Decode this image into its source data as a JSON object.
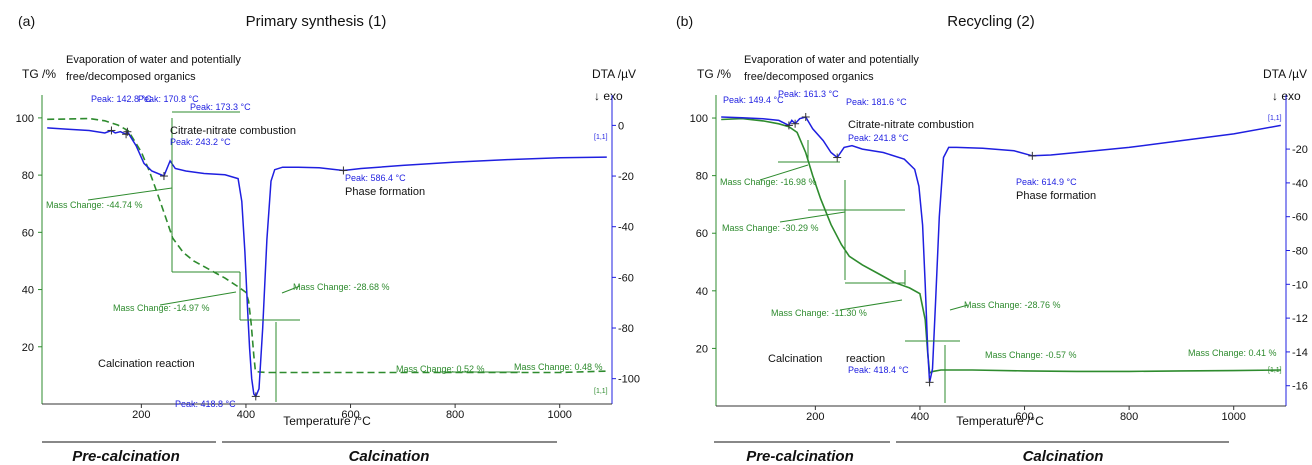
{
  "colors": {
    "tg": "#2e8b2e",
    "dta": "#1f1fe0",
    "text": "#111111",
    "axis_tg": "#2e8b2e",
    "axis_dta": "#1f1fe0"
  },
  "chart_data": [
    {
      "type": "line",
      "panel_label": "(a)",
      "title": "Primary synthesis (1)",
      "xlabel": "Temperature /°C",
      "ylabel_left": "TG /%",
      "ylabel_right": "DTA /µV",
      "exo_label": "↓ exo",
      "xlim": [
        10,
        1100
      ],
      "ylim_left": [
        0,
        108
      ],
      "ylim_right": [
        -110,
        12
      ],
      "xticks": [
        "200",
        "400",
        "600",
        "800",
        "1000"
      ],
      "yticks_left": [
        "20",
        "40",
        "60",
        "80",
        "100"
      ],
      "yticks_right": [
        "0",
        "-20",
        "-40",
        "-60",
        "-80",
        "-100"
      ],
      "series": [
        {
          "kind": "TG",
          "style": "dashed",
          "x": [
            20,
            60,
            100,
            130,
            155,
            175,
            200,
            215,
            230,
            245,
            260,
            280,
            300,
            330,
            360,
            385,
            400,
            405,
            410,
            415,
            418,
            425,
            440,
            480,
            600,
            800,
            1000,
            1090
          ],
          "y": [
            99.5,
            99.6,
            99.8,
            99,
            97.5,
            95.5,
            88,
            81.5,
            74,
            66,
            58,
            53,
            50,
            47,
            44,
            41,
            39,
            36,
            28,
            17,
            11.5,
            11.2,
            11,
            11,
            11,
            11,
            11,
            11.5
          ]
        },
        {
          "kind": "DTA",
          "style": "solid",
          "x": [
            20,
            60,
            100,
            130,
            142.8,
            150,
            160,
            170.8,
            173.3,
            190,
            205,
            220,
            243.2,
            255,
            265,
            285,
            320,
            360,
            385,
            392,
            398,
            403,
            407,
            411,
            415,
            418.8,
            425,
            432,
            440,
            448,
            455,
            470,
            500,
            540,
            586.4,
            620,
            700,
            800,
            900,
            1000,
            1090
          ],
          "y": [
            -1,
            -1.5,
            -2,
            -3,
            -2,
            -3,
            -2.5,
            -3.5,
            -2.5,
            -8,
            -15,
            -18,
            -20,
            -14,
            -17,
            -18,
            -19,
            -19.5,
            -21,
            -30,
            -50,
            -72,
            -88,
            -100,
            -106,
            -107,
            -104,
            -80,
            -45,
            -22,
            -17.5,
            -16.5,
            -16.5,
            -16.7,
            -17.8,
            -17,
            -15.8,
            -14.5,
            -13.5,
            -12.8,
            -12.5
          ]
        }
      ],
      "peaks_dta": [
        {
          "label": "Peak: 142.8 °C"
        },
        {
          "label": "Peak: 170.8 °C"
        },
        {
          "label": "Peak: 173.3 °C"
        },
        {
          "label": "Peak: 243.2 °C"
        },
        {
          "label": "Peak: 586.4 °C"
        },
        {
          "label": "Peak: 418.8 °C"
        }
      ],
      "mass_changes": [
        "Mass Change: -44.74 %",
        "Mass Change: -14.97 %",
        "Mass Change: -28.68 %",
        "Mass Change: 0.52 %",
        "Mass Change: 0.48 %"
      ],
      "annotations": [
        "Evaporation of water and potentially",
        "free/decomposed organics",
        "Citrate-nitrate combustion",
        "Phase formation",
        "Calcination reaction"
      ],
      "curve_tags": [
        "[1,1]",
        "[1,1]"
      ],
      "stages": [
        "Pre-calcination",
        "Calcination"
      ]
    },
    {
      "type": "line",
      "panel_label": "(b)",
      "title": "Recycling (2)",
      "xlabel": "Temperature /°C",
      "ylabel_left": "TG /%",
      "ylabel_right": "DTA /µV",
      "exo_label": "↓ exo",
      "xlim": [
        10,
        1100
      ],
      "ylim_left": [
        0,
        108
      ],
      "ylim_right": [
        -172,
        12
      ],
      "xticks": [
        "200",
        "400",
        "600",
        "800",
        "1000"
      ],
      "yticks_left": [
        "20",
        "40",
        "60",
        "80",
        "100"
      ],
      "yticks_right": [
        "-20",
        "-40",
        "-60",
        "-80",
        "-10",
        "-12",
        "-14",
        "-16"
      ],
      "series": [
        {
          "kind": "TG",
          "style": "solid",
          "x": [
            20,
            60,
            100,
            130,
            149.4,
            165,
            181.6,
            195,
            210,
            230,
            250,
            265,
            290,
            320,
            350,
            380,
            400,
            410,
            415,
            418.4,
            425,
            440,
            500,
            600,
            700,
            800,
            900,
            1000,
            1090
          ],
          "y": [
            99.5,
            99.8,
            99,
            98,
            97,
            95,
            88,
            80,
            72,
            63,
            56,
            52,
            49,
            46,
            43,
            41,
            39,
            30,
            18,
            11.5,
            12,
            12.5,
            12.5,
            12.2,
            12,
            12,
            12.2,
            12.3,
            12.5
          ]
        },
        {
          "kind": "DTA",
          "style": "solid",
          "x": [
            20,
            60,
            100,
            130,
            149.4,
            155,
            161.3,
            170,
            181.6,
            195,
            215,
            230,
            241.8,
            255,
            270,
            290,
            330,
            370,
            390,
            398,
            405,
            410,
            415,
            418.4,
            424,
            430,
            437,
            445,
            455,
            470,
            520,
            580,
            614.9,
            650,
            700,
            800,
            900,
            1000,
            1090
          ],
          "y": [
            -1,
            -1.5,
            -2,
            -3,
            -6,
            -3,
            -5,
            -2,
            -1,
            -8,
            -15,
            -22,
            -25,
            -19,
            -18,
            -20,
            -22,
            -26,
            -32,
            -42,
            -65,
            -100,
            -140,
            -158,
            -150,
            -110,
            -60,
            -25,
            -19,
            -19,
            -19.5,
            -21,
            -24,
            -23.5,
            -22,
            -19,
            -15,
            -11,
            -6
          ]
        }
      ],
      "peaks_dta": [
        {
          "label": "Peak: 149.4 °C"
        },
        {
          "label": "Peak: 161.3 °C"
        },
        {
          "label": "Peak: 181.6 °C"
        },
        {
          "label": "Peak: 241.8 °C"
        },
        {
          "label": "Peak: 614.9 °C"
        },
        {
          "label": "Peak: 418.4 °C"
        }
      ],
      "mass_changes": [
        "Mass Change: -16.98 %",
        "Mass Change: -30.29 %",
        "Mass Change: -11.30 %",
        "Mass Change: -28.76 %",
        "Mass Change: -0.57 %",
        "Mass Change: 0.41 %"
      ],
      "annotations": [
        "Evaporation of water and potentially",
        "free/decomposed organics",
        "Citrate-nitrate combustion",
        "Phase formation",
        "Calcination",
        "reaction"
      ],
      "curve_tags": [
        "[1,1]",
        "[1,1]"
      ],
      "stages": [
        "Pre-calcination",
        "Calcination"
      ]
    }
  ]
}
